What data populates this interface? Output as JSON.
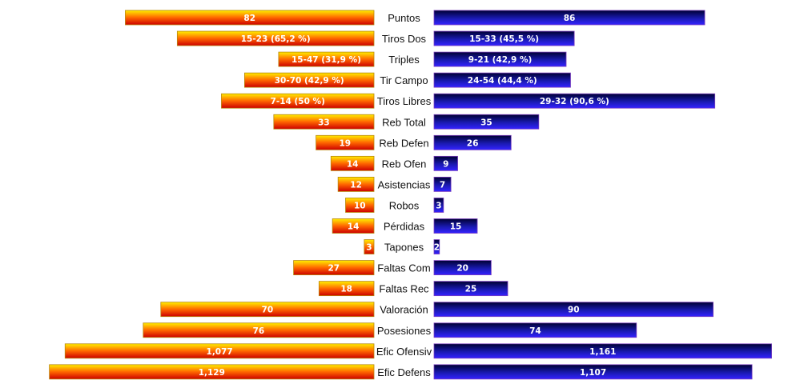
{
  "chart_data": {
    "type": "bar",
    "orientation": "horizontal-butterfly",
    "grid": false,
    "legend": "none",
    "categories": [
      "Puntos",
      "Tiros Dos",
      "Triples",
      "Tir Campo",
      "Tiros Libres",
      "Reb Total",
      "Reb Defen",
      "Reb Ofen",
      "Asistencias",
      "Robos",
      "Pérdidas",
      "Tapones",
      "Faltas Com",
      "Faltas Rec",
      "Valoración",
      "Posesiones",
      "Efic Ofensiv",
      "Efic Defens"
    ],
    "series": [
      {
        "side": "left",
        "colors": [
          "#ffee00",
          "#ff6600",
          "#cc0000"
        ],
        "labels": [
          "82",
          "15-23 (65,2 %)",
          "15-47 (31,9 %)",
          "30-70 (42,9 %)",
          "7-14 (50 %)",
          "33",
          "19",
          "14",
          "12",
          "10",
          "14",
          "3",
          "27",
          "18",
          "70",
          "76",
          "1,077",
          "1,129"
        ],
        "values": [
          82,
          15,
          15,
          30,
          7,
          33,
          19,
          14,
          12,
          10,
          14,
          3,
          27,
          18,
          70,
          76,
          1.077,
          1.129
        ],
        "bar_fraction": [
          0.665,
          0.526,
          0.255,
          0.346,
          0.408,
          0.268,
          0.155,
          0.115,
          0.096,
          0.076,
          0.111,
          0.026,
          0.215,
          0.147,
          0.57,
          0.617,
          0.826,
          0.868
        ]
      },
      {
        "side": "right",
        "colors": [
          "#000033",
          "#1a1ab0",
          "#3322ff"
        ],
        "labels": [
          "86",
          "15-33 (45,5 %)",
          "9-21 (42,9 %)",
          "24-54 (44,4 %)",
          "29-32 (90,6 %)",
          "35",
          "26",
          "9",
          "7",
          "3",
          "15",
          "2",
          "20",
          "25",
          "90",
          "74",
          "1,161",
          "1,107"
        ],
        "values": [
          86,
          15,
          9,
          24,
          29,
          35,
          26,
          9,
          7,
          3,
          15,
          2,
          20,
          25,
          90,
          74,
          1.161,
          1.107
        ],
        "bar_fraction": [
          0.801,
          0.415,
          0.391,
          0.404,
          0.831,
          0.31,
          0.228,
          0.07,
          0.05,
          0.028,
          0.128,
          0.016,
          0.169,
          0.218,
          0.826,
          0.599,
          0.999,
          0.941
        ]
      }
    ]
  }
}
